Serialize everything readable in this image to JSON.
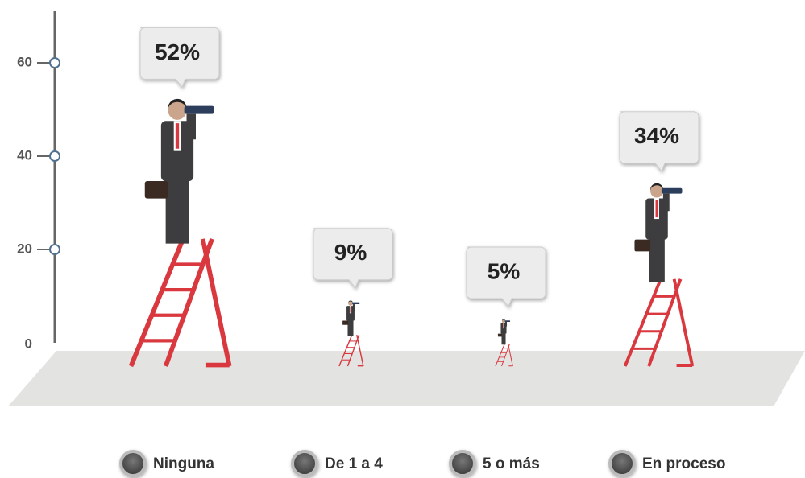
{
  "chart_data": {
    "type": "ladder",
    "categories": [
      "Ninguna",
      "De 1 a 4",
      "5 o más",
      "En proceso"
    ],
    "values": [
      52,
      9,
      5,
      34
    ],
    "value_labels": [
      "52%",
      "9%",
      "5%",
      "34%"
    ],
    "ylim": [
      0,
      70
    ],
    "yticks": [
      0,
      20,
      40,
      60
    ],
    "ladder_color": "#d9383e",
    "suit_color": "#3d3d3f",
    "legend_color": "#4a4a4a"
  }
}
